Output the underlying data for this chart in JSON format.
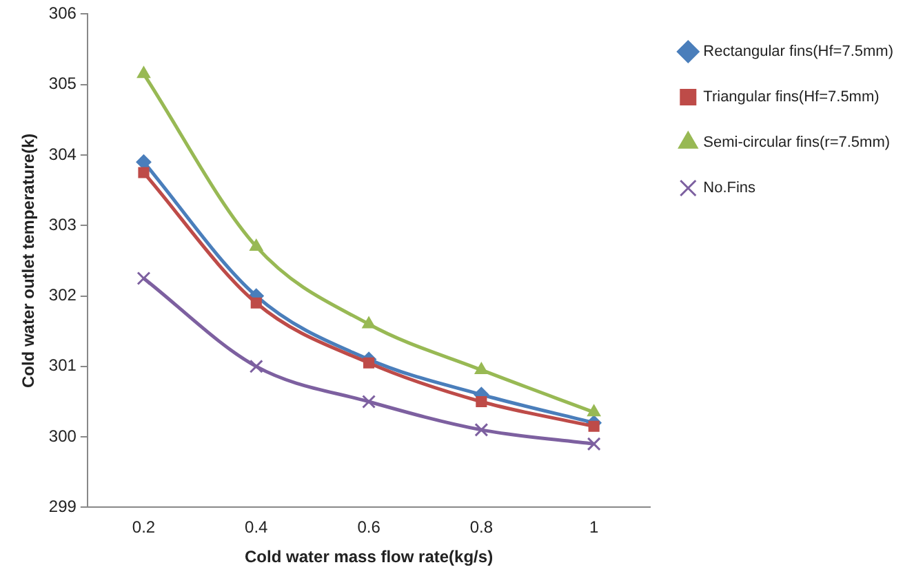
{
  "chart_data": {
    "type": "line",
    "xlabel": "Cold water mass flow rate(kg/s)",
    "ylabel": "Cold water outlet temperature(k)",
    "categories": [
      "0.2",
      "0.4",
      "0.6",
      "0.8",
      "1"
    ],
    "ylim": [
      299,
      306
    ],
    "yticks": [
      299,
      300,
      301,
      302,
      303,
      304,
      305,
      306
    ],
    "grid": false,
    "legend": "right",
    "line_style": "solid",
    "series": [
      {
        "name": "Rectangular fins(Hf=7.5mm)",
        "color": "#4a7ebb",
        "marker": "diamond",
        "values": [
          303.9,
          302.0,
          301.1,
          300.6,
          300.2
        ]
      },
      {
        "name": "Triangular fins(Hf=7.5mm)",
        "color": "#be4b48",
        "marker": "square",
        "values": [
          303.75,
          301.9,
          301.05,
          300.5,
          300.15
        ]
      },
      {
        "name": "Semi-circular fins(r=7.5mm)",
        "color": "#98b954",
        "marker": "triangle",
        "values": [
          305.15,
          302.7,
          301.6,
          300.95,
          300.35
        ]
      },
      {
        "name": "No.Fins",
        "color": "#7d60a0",
        "marker": "cross",
        "values": [
          302.25,
          301.0,
          300.5,
          300.1,
          299.9
        ]
      }
    ]
  }
}
